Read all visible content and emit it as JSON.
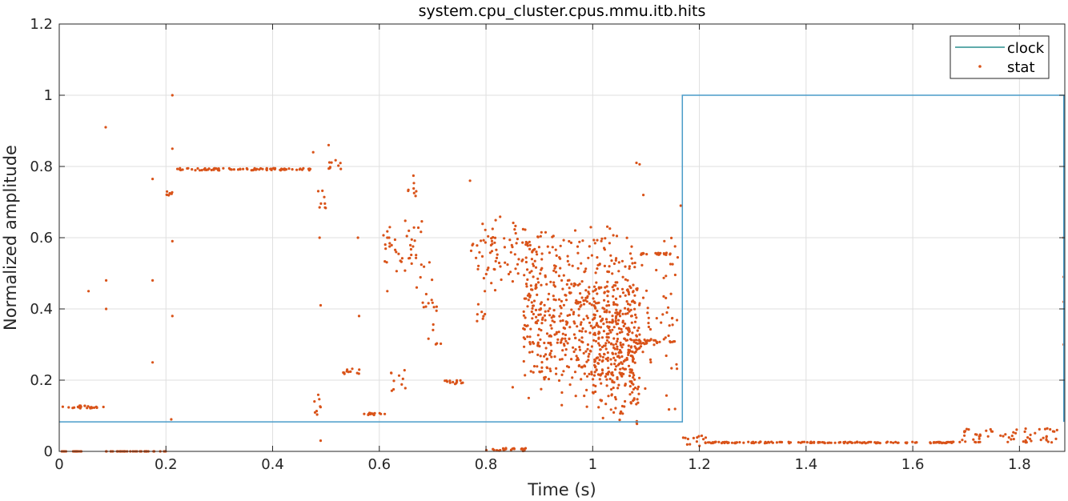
{
  "chart_data": {
    "type": "line",
    "title": "system.cpu_cluster.cpus.mmu.itb.hits",
    "xlabel": "Time (s)",
    "ylabel": "Normalized amplitude",
    "xlim": [
      0,
      1.885
    ],
    "ylim": [
      0,
      1.2
    ],
    "x_ticks": [
      0,
      0.2,
      0.4,
      0.6,
      0.8,
      1,
      1.2,
      1.4,
      1.6,
      1.8
    ],
    "x_tick_labels": [
      "0",
      "0.2",
      "0.4",
      "0.6",
      "0.8",
      "1",
      "1.2",
      "1.4",
      "1.6",
      "1.8"
    ],
    "y_ticks": [
      0,
      0.2,
      0.4,
      0.6,
      0.8,
      1,
      1.2
    ],
    "y_tick_labels": [
      "0",
      "0.2",
      "0.4",
      "0.6",
      "0.8",
      "1",
      "1.2"
    ],
    "grid": true,
    "legend_position": "top-right",
    "series": [
      {
        "name": "clock",
        "style": "line",
        "color": "#4a9cc9",
        "legend_color": "#2a8f8f",
        "x": [
          0,
          1.168,
          1.168,
          1.883,
          1.883
        ],
        "y": [
          0.083,
          0.083,
          1.0,
          1.0,
          0.083
        ]
      },
      {
        "name": "stat",
        "style": "markers",
        "color": "#d95319",
        "segments": [
          {
            "x": [
              0.0,
              0.045
            ],
            "y": 0.0,
            "spread": 0.0
          },
          {
            "x": [
              0.005,
              0.085
            ],
            "y": 0.125,
            "spread": 0.004
          },
          {
            "x": [
              0.087,
              0.2
            ],
            "y": 0.0,
            "spread": 0.0
          },
          {
            "x": [
              0.2,
              0.215
            ],
            "y": 0.725,
            "spread": 0.006
          },
          {
            "x": [
              0.215,
              0.475
            ],
            "y": 0.792,
            "spread": 0.003
          },
          {
            "x": [
              0.478,
              0.49
            ],
            "y": 0.13,
            "spread": 0.03
          },
          {
            "x": [
              0.485,
              0.505
            ],
            "y": 0.71,
            "spread": 0.03
          },
          {
            "x": [
              0.505,
              0.532
            ],
            "y": 0.805,
            "spread": 0.015
          },
          {
            "x": [
              0.532,
              0.565
            ],
            "y": 0.225,
            "spread": 0.008
          },
          {
            "x": [
              0.565,
              0.612
            ],
            "y": 0.105,
            "spread": 0.003
          },
          {
            "x": [
              0.618,
              0.65
            ],
            "y": 0.2,
            "spread": 0.03
          },
          {
            "x": [
              0.65,
              0.67
            ],
            "y": 0.74,
            "spread": 0.04
          },
          {
            "x": [
              0.67,
              0.7
            ],
            "y": 0.48,
            "spread": 0.08
          },
          {
            "x": [
              0.69,
              0.72
            ],
            "y": 0.36,
            "spread": 0.06
          },
          {
            "x": [
              0.72,
              0.76
            ],
            "y": 0.195,
            "spread": 0.006
          },
          {
            "x": [
              0.77,
              0.79
            ],
            "y": 0.55,
            "spread": 0.04
          },
          {
            "x": [
              0.78,
              0.8
            ],
            "y": 0.4,
            "spread": 0.05
          },
          {
            "x": [
              0.8,
              0.875
            ],
            "y": 0.005,
            "spread": 0.004
          },
          {
            "x": [
              0.875,
              0.9
            ],
            "y": 0.56,
            "spread": 0.05
          },
          {
            "x": [
              0.9,
              1.09
            ],
            "y": 0.3,
            "spread": 0.09
          },
          {
            "x": [
              1.09,
              1.155
            ],
            "y": 0.555,
            "spread": 0.003
          },
          {
            "x": [
              1.09,
              1.155
            ],
            "y": 0.31,
            "spread": 0.006
          },
          {
            "x": [
              1.168,
              1.215
            ],
            "y": 0.03,
            "spread": 0.015
          },
          {
            "x": [
              1.215,
              1.69
            ],
            "y": 0.025,
            "spread": 0.002
          },
          {
            "x": [
              1.69,
              1.883
            ],
            "y": 0.045,
            "spread": 0.02
          }
        ],
        "scatter_clouds": [
          {
            "x": [
              0.605,
              0.68
            ],
            "y": [
              0.45,
              0.68
            ],
            "n": 40
          },
          {
            "x": [
              0.79,
              0.87
            ],
            "y": [
              0.45,
              0.68
            ],
            "n": 60
          },
          {
            "x": [
              0.87,
              1.08
            ],
            "y": [
              0.1,
              0.66
            ],
            "n": 550
          },
          {
            "x": [
              1.0,
              1.09
            ],
            "y": [
              0.05,
              0.5
            ],
            "n": 220
          },
          {
            "x": [
              1.09,
              1.16
            ],
            "y": [
              0.1,
              0.65
            ],
            "n": 50
          }
        ],
        "outliers": [
          {
            "x": 0.087,
            "y": 0.91
          },
          {
            "x": 0.212,
            "y": 1.0
          },
          {
            "x": 0.212,
            "y": 0.85
          },
          {
            "x": 0.175,
            "y": 0.765
          },
          {
            "x": 0.088,
            "y": 0.48
          },
          {
            "x": 0.088,
            "y": 0.4
          },
          {
            "x": 0.055,
            "y": 0.45
          },
          {
            "x": 0.175,
            "y": 0.48
          },
          {
            "x": 0.175,
            "y": 0.25
          },
          {
            "x": 0.212,
            "y": 0.59
          },
          {
            "x": 0.212,
            "y": 0.38
          },
          {
            "x": 0.21,
            "y": 0.09
          },
          {
            "x": 0.476,
            "y": 0.84
          },
          {
            "x": 0.505,
            "y": 0.86
          },
          {
            "x": 0.488,
            "y": 0.6
          },
          {
            "x": 0.49,
            "y": 0.41
          },
          {
            "x": 0.49,
            "y": 0.03
          },
          {
            "x": 0.56,
            "y": 0.6
          },
          {
            "x": 0.562,
            "y": 0.38
          },
          {
            "x": 0.615,
            "y": 0.6
          },
          {
            "x": 0.615,
            "y": 0.45
          },
          {
            "x": 0.77,
            "y": 0.76
          },
          {
            "x": 1.082,
            "y": 0.81
          },
          {
            "x": 1.088,
            "y": 0.806
          },
          {
            "x": 1.095,
            "y": 0.72
          },
          {
            "x": 1.165,
            "y": 0.69
          },
          {
            "x": 1.883,
            "y": 0.6
          },
          {
            "x": 1.883,
            "y": 0.49
          },
          {
            "x": 1.883,
            "y": 0.42
          },
          {
            "x": 1.883,
            "y": 0.3
          },
          {
            "x": 0.88,
            "y": 0.15
          },
          {
            "x": 0.85,
            "y": 0.18
          }
        ]
      }
    ]
  }
}
